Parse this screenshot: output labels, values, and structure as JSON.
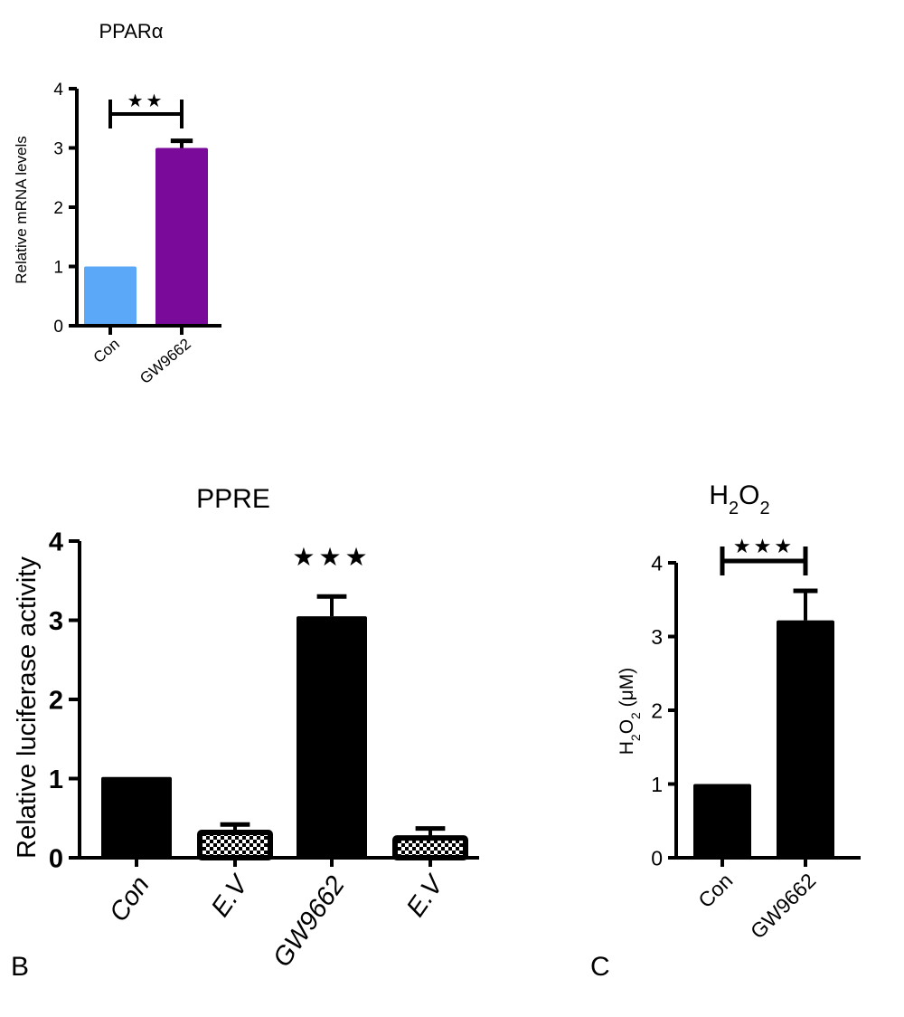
{
  "panels": {
    "B": {
      "letter": "B"
    },
    "C": {
      "letter": "C"
    }
  },
  "chart_data": [
    {
      "type": "bar",
      "title": "PPARα",
      "ylabel": "Relative mRNA levels",
      "xlabel": "",
      "categories": [
        "Con",
        "GW9662"
      ],
      "values": [
        1.0,
        3.0
      ],
      "errors": [
        0,
        0.12
      ],
      "bar_colors": [
        "#5aa8f7",
        "#7a0b9a"
      ],
      "bar_patterns": [
        "solid",
        "solid"
      ],
      "ylim": [
        0,
        4
      ],
      "yticks": [
        "0",
        "1",
        "2",
        "3",
        "4"
      ],
      "significance": [
        {
          "from": "Con",
          "to": "GW9662",
          "label": "★★"
        }
      ],
      "grid": false,
      "legend": "none"
    },
    {
      "type": "bar",
      "title": "PPRE",
      "ylabel": "Relative luciferase activity",
      "xlabel": "",
      "categories": [
        "Con",
        "E.V",
        "GW9662",
        "E.V"
      ],
      "values": [
        1.02,
        0.32,
        3.05,
        0.25
      ],
      "errors": [
        0,
        0.1,
        0.25,
        0.12
      ],
      "bar_colors": [
        "#000000",
        "#000000",
        "#000000",
        "#000000"
      ],
      "bar_patterns": [
        "solid",
        "checker",
        "solid",
        "checker"
      ],
      "ylim": [
        0,
        4
      ],
      "yticks": [
        "0",
        "1",
        "2",
        "3",
        "4"
      ],
      "significance": [
        {
          "over": "GW9662",
          "label": "★★★"
        }
      ],
      "grid": false,
      "legend": "none"
    },
    {
      "type": "bar",
      "title": "H₂O₂",
      "ylabel": "H₂O₂ (μM)",
      "xlabel": "",
      "categories": [
        "Con",
        "GW9662"
      ],
      "values": [
        1.0,
        3.22
      ],
      "errors": [
        0,
        0.4
      ],
      "bar_colors": [
        "#000000",
        "#000000"
      ],
      "bar_patterns": [
        "solid",
        "solid"
      ],
      "ylim": [
        0,
        4
      ],
      "yticks": [
        "0",
        "1",
        "2",
        "3",
        "4"
      ],
      "significance": [
        {
          "from": "Con",
          "to": "GW9662",
          "label": "★★★"
        }
      ],
      "grid": false,
      "legend": "none"
    }
  ]
}
